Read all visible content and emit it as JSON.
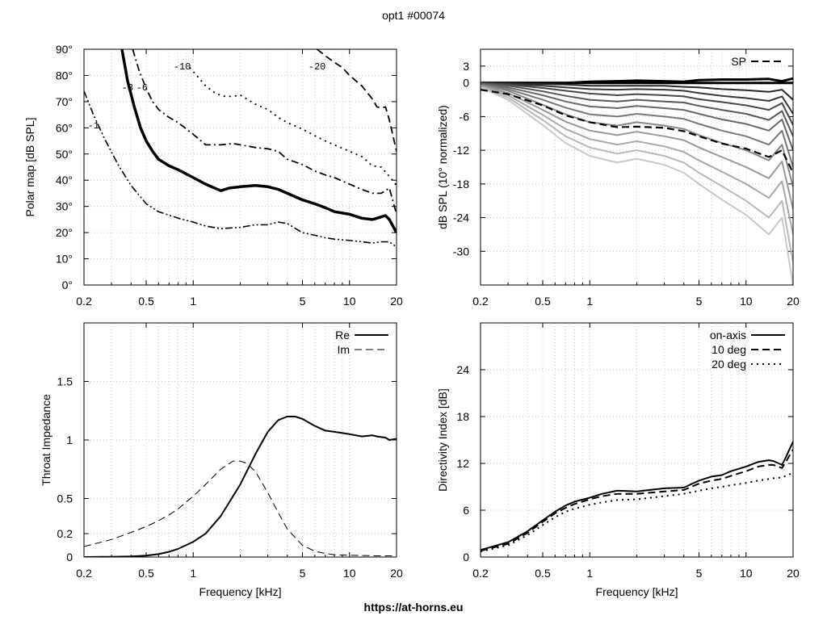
{
  "title": "opt1 #00074",
  "footer": "https://at-horns.eu",
  "chart_data": [
    {
      "id": "polar",
      "type": "line",
      "subtype": "contour",
      "ylabel": "Polar map [dB SPL]",
      "xlabel": "",
      "xscale": "log",
      "xlim": [
        0.2,
        20
      ],
      "ylim": [
        0,
        90
      ],
      "x_tick_values": [
        0.2,
        0.5,
        1,
        5,
        10,
        20
      ],
      "x_tick_labels": [
        "0.2",
        "0.5",
        "1",
        "5",
        "10",
        "20"
      ],
      "y_tick_values": [
        0,
        10,
        20,
        30,
        40,
        50,
        60,
        70,
        80,
        90
      ],
      "y_tick_labels": [
        "0°",
        "10°",
        "20°",
        "30°",
        "40°",
        "50°",
        "60°",
        "70°",
        "80°",
        "90°"
      ],
      "grid": true,
      "series": [
        {
          "label": "-1",
          "style": "dashdotdot",
          "width": 1.6,
          "x": [
            0.2,
            0.23,
            0.27,
            0.33,
            0.4,
            0.5,
            0.6,
            0.8,
            1.0,
            1.2,
            1.5,
            2.0,
            2.5,
            3.0,
            3.5,
            4.0,
            5.0,
            6.0,
            7.0,
            8.0,
            10,
            12,
            14,
            16,
            18,
            20
          ],
          "y": [
            74,
            65,
            56,
            46,
            38,
            31,
            28,
            25.5,
            24,
            22.5,
            21.5,
            22,
            23,
            23,
            24,
            23.5,
            20,
            19,
            18,
            17.5,
            17,
            16.5,
            16,
            16.5,
            16.5,
            14.5
          ]
        },
        {
          "label": "-3",
          "style": "solid",
          "width": 3.5,
          "x": [
            0.35,
            0.38,
            0.42,
            0.46,
            0.5,
            0.55,
            0.6,
            0.7,
            0.8,
            1.0,
            1.2,
            1.5,
            1.7,
            2.0,
            2.5,
            3.0,
            3.5,
            4.0,
            5.0,
            6.0,
            7.0,
            8.0,
            10,
            12,
            14,
            15,
            16,
            17,
            18,
            20
          ],
          "y": [
            90,
            78,
            68,
            60,
            55,
            51,
            48,
            45.5,
            44,
            41,
            38.5,
            36,
            37,
            37.5,
            38,
            37.5,
            36.5,
            35,
            32.5,
            31,
            29.5,
            28,
            27,
            25.5,
            25,
            25.5,
            26,
            26.5,
            25,
            20
          ]
        },
        {
          "label": "-6",
          "style": "dashdot",
          "width": 1.8,
          "x": [
            0.41,
            0.45,
            0.5,
            0.55,
            0.6,
            0.7,
            0.8,
            1.0,
            1.2,
            1.5,
            1.8,
            2.0,
            2.5,
            3.0,
            3.5,
            4.0,
            5.0,
            6.0,
            7.0,
            8.0,
            10,
            12,
            14,
            16,
            18,
            20
          ],
          "y": [
            90,
            82,
            75,
            70,
            67,
            64,
            62,
            57.5,
            53.5,
            53.5,
            54,
            53.5,
            52.5,
            52,
            51,
            48,
            46,
            43.5,
            42,
            41,
            38.5,
            36.5,
            35,
            35,
            37,
            27
          ]
        },
        {
          "label": "-10",
          "style": "dotted",
          "width": 1.8,
          "x": [
            0.95,
            1.05,
            1.2,
            1.4,
            1.6,
            1.8,
            2.0,
            2.2,
            2.5,
            3.0,
            3.5,
            4.0,
            5.0,
            6.0,
            7.0,
            8.0,
            10,
            12,
            14,
            16,
            18,
            20
          ],
          "y": [
            83,
            80,
            76,
            73,
            72,
            72,
            72.5,
            71,
            69,
            67,
            64,
            62,
            59.5,
            57,
            55,
            53.5,
            51,
            49,
            45.5,
            45,
            41.5,
            38
          ]
        },
        {
          "label": "-20",
          "style": "dashed",
          "width": 1.8,
          "x": [
            6.2,
            7.0,
            8.0,
            9.0,
            10,
            12,
            14,
            15,
            16,
            17,
            18,
            20
          ],
          "y": [
            90,
            87.5,
            85,
            83,
            80,
            76,
            71,
            68,
            67.5,
            68,
            63,
            51
          ]
        }
      ],
      "annotations": [
        {
          "text": "-1",
          "x": 0.23,
          "y": 61
        },
        {
          "text": "-3",
          "x": 0.38,
          "y": 75.5
        },
        {
          "text": "-6",
          "x": 0.47,
          "y": 75.5
        },
        {
          "text": "-10",
          "x": 0.85,
          "y": 83.5
        },
        {
          "text": "-20",
          "x": 6.2,
          "y": 83.5
        }
      ]
    },
    {
      "id": "norm",
      "type": "line",
      "ylabel": "dB SPL (10° normalized)",
      "xlabel": "",
      "xscale": "log",
      "xlim": [
        0.2,
        20
      ],
      "ylim": [
        -36,
        6
      ],
      "x_tick_values": [
        0.2,
        0.5,
        1,
        5,
        10,
        20
      ],
      "x_tick_labels": [
        "0.2",
        "0.5",
        "1",
        "5",
        "10",
        "20"
      ],
      "y_tick_values": [
        3,
        0,
        -6,
        -12,
        -18,
        -24,
        -30
      ],
      "y_tick_labels": [
        "3",
        "0",
        "-6",
        "-12",
        "-18",
        "-24",
        "-30"
      ],
      "grid": true,
      "legend": "top-right",
      "legend_entries": [
        "SP"
      ],
      "freq": [
        0.2,
        0.3,
        0.5,
        0.7,
        1.0,
        1.5,
        2.0,
        3.0,
        4.0,
        5.0,
        7.0,
        10,
        14,
        17,
        20
      ],
      "series": [
        {
          "angle": 0,
          "values": [
            0,
            0,
            0,
            0,
            0.2,
            0.3,
            0.4,
            0.3,
            0.2,
            0.5,
            0.6,
            0.6,
            0.7,
            0.3,
            0.8
          ]
        },
        {
          "angle": 10,
          "values": [
            0,
            0,
            0,
            0,
            0,
            0,
            0,
            0,
            0,
            0,
            0,
            0,
            0,
            0,
            0
          ]
        },
        {
          "angle": 20,
          "values": [
            0,
            -0.1,
            -0.2,
            -0.3,
            -0.5,
            -0.5,
            -0.5,
            -0.5,
            -0.7,
            -0.8,
            -1.1,
            -1.3,
            -1.6,
            -1.2,
            -3
          ]
        },
        {
          "angle": 30,
          "values": [
            0,
            -0.2,
            -0.5,
            -0.8,
            -1.1,
            -1.2,
            -1.1,
            -1.2,
            -1.4,
            -1.8,
            -2.3,
            -2.7,
            -3.2,
            -2.4,
            -5.5
          ]
        },
        {
          "angle": 40,
          "values": [
            -0.1,
            -0.3,
            -0.9,
            -1.4,
            -1.9,
            -2.2,
            -2.0,
            -2.2,
            -2.4,
            -2.9,
            -3.4,
            -4.0,
            -4.8,
            -3.6,
            -7.5
          ]
        },
        {
          "angle": 50,
          "values": [
            -0.1,
            -0.5,
            -1.5,
            -2.3,
            -3.0,
            -3.3,
            -3.0,
            -3.3,
            -3.5,
            -4.1,
            -4.8,
            -5.5,
            -6.6,
            -5.0,
            -9.5
          ]
        },
        {
          "angle": 60,
          "values": [
            -0.2,
            -0.8,
            -2.2,
            -3.3,
            -4.2,
            -4.5,
            -4.1,
            -4.5,
            -4.8,
            -5.5,
            -6.5,
            -7.3,
            -8.5,
            -6.5,
            -12
          ]
        },
        {
          "angle": 70,
          "values": [
            -0.3,
            -1.1,
            -3.0,
            -4.4,
            -5.6,
            -6.0,
            -5.5,
            -6.0,
            -6.4,
            -7.3,
            -8.5,
            -9.5,
            -11,
            -8.5,
            -15
          ]
        },
        {
          "angle": 80,
          "values": [
            -0.4,
            -1.4,
            -3.9,
            -5.6,
            -7.0,
            -7.6,
            -7.0,
            -7.6,
            -8.2,
            -9.3,
            -10.7,
            -12,
            -13.8,
            -11,
            -18.5
          ]
        },
        {
          "angle": 90,
          "values": [
            -0.5,
            -1.8,
            -4.8,
            -6.9,
            -8.5,
            -9.3,
            -8.7,
            -9.5,
            -10.2,
            -11.5,
            -13.2,
            -15,
            -17,
            -14,
            -22.5
          ]
        },
        {
          "angle": 100,
          "values": [
            -0.6,
            -2.2,
            -5.7,
            -8.2,
            -10,
            -11,
            -10.4,
            -11.3,
            -12.3,
            -13.8,
            -15.8,
            -18,
            -20.5,
            -17.5,
            -27
          ]
        },
        {
          "angle": 110,
          "values": [
            -0.7,
            -2.6,
            -6.6,
            -9.5,
            -11.5,
            -12.6,
            -12,
            -13,
            -14.2,
            -16,
            -18.4,
            -21,
            -24,
            -21,
            -32
          ]
        },
        {
          "angle": 120,
          "values": [
            -0.8,
            -3.0,
            -7.5,
            -10.7,
            -13,
            -14.2,
            -13.5,
            -14.6,
            -16,
            -18,
            -20.8,
            -23.5,
            -27,
            -24,
            -36
          ]
        },
        {
          "name": "SP",
          "style": "dashed",
          "values": [
            -1.2,
            -2.0,
            -4.0,
            -5.8,
            -7.0,
            -7.9,
            -7.8,
            -8.0,
            -8.6,
            -9.5,
            -10.8,
            -11.7,
            -13.2,
            -12,
            -16
          ]
        }
      ]
    },
    {
      "id": "impedance",
      "type": "line",
      "ylabel": "Throat Impedance",
      "xlabel": "Frequency [kHz]",
      "xscale": "log",
      "xlim": [
        0.2,
        20
      ],
      "ylim": [
        0,
        2
      ],
      "x_tick_values": [
        0.2,
        0.5,
        1,
        5,
        10,
        20
      ],
      "x_tick_labels": [
        "0.2",
        "0.5",
        "1",
        "5",
        "10",
        "20"
      ],
      "y_tick_values": [
        0,
        0.2,
        0.5,
        1,
        1.5
      ],
      "y_tick_labels": [
        "0",
        "0.2",
        "0.5",
        "1",
        "1.5"
      ],
      "grid": true,
      "legend": "top-right",
      "series": [
        {
          "name": "Re",
          "style": "solid",
          "x": [
            0.2,
            0.3,
            0.4,
            0.5,
            0.6,
            0.7,
            0.8,
            1.0,
            1.2,
            1.5,
            2.0,
            2.5,
            3.0,
            3.5,
            4.0,
            4.5,
            5.0,
            6.0,
            7.0,
            8.0,
            10,
            12,
            14,
            15,
            17,
            18,
            20
          ],
          "y": [
            0,
            0.002,
            0.005,
            0.012,
            0.025,
            0.045,
            0.07,
            0.13,
            0.2,
            0.35,
            0.62,
            0.88,
            1.07,
            1.17,
            1.2,
            1.2,
            1.18,
            1.12,
            1.08,
            1.07,
            1.05,
            1.03,
            1.04,
            1.03,
            1.02,
            1.0,
            1.01
          ]
        },
        {
          "name": "Im",
          "style": "dashed",
          "x": [
            0.2,
            0.3,
            0.4,
            0.5,
            0.6,
            0.7,
            0.8,
            1.0,
            1.2,
            1.5,
            1.8,
            2.0,
            2.2,
            2.5,
            3.0,
            3.5,
            4.0,
            5.0,
            6.0,
            7.0,
            8.0,
            10,
            15,
            20
          ],
          "y": [
            0.09,
            0.15,
            0.21,
            0.26,
            0.31,
            0.36,
            0.41,
            0.52,
            0.62,
            0.75,
            0.82,
            0.82,
            0.8,
            0.73,
            0.55,
            0.38,
            0.24,
            0.1,
            0.05,
            0.03,
            0.02,
            0.015,
            0.01,
            0.01
          ]
        }
      ]
    },
    {
      "id": "di",
      "type": "line",
      "ylabel": "Directivity Index [dB]",
      "xlabel": "Frequency [kHz]",
      "xscale": "log",
      "xlim": [
        0.2,
        20
      ],
      "ylim": [
        0,
        30
      ],
      "x_tick_values": [
        0.2,
        0.5,
        1,
        5,
        10,
        20
      ],
      "x_tick_labels": [
        "0.2",
        "0.5",
        "1",
        "5",
        "10",
        "20"
      ],
      "y_tick_values": [
        0,
        6,
        12,
        18,
        24
      ],
      "y_tick_labels": [
        "0",
        "6",
        "12",
        "18",
        "24"
      ],
      "grid": true,
      "legend": "top-right",
      "series": [
        {
          "name": "on-axis",
          "style": "solid",
          "x": [
            0.2,
            0.3,
            0.4,
            0.5,
            0.6,
            0.7,
            0.8,
            1.0,
            1.2,
            1.5,
            2.0,
            3.0,
            4.0,
            5.0,
            6.0,
            7.0,
            8.0,
            10,
            12,
            14,
            15,
            17,
            18,
            20
          ],
          "y": [
            0.9,
            1.9,
            3.3,
            4.7,
            5.8,
            6.6,
            7.1,
            7.6,
            8.1,
            8.5,
            8.4,
            8.8,
            8.9,
            9.8,
            10.3,
            10.5,
            11.0,
            11.6,
            12.2,
            12.4,
            12.3,
            11.8,
            12.8,
            14.8
          ]
        },
        {
          "name": "10 deg",
          "style": "dashed",
          "x": [
            0.2,
            0.3,
            0.4,
            0.5,
            0.6,
            0.7,
            0.8,
            1.0,
            1.2,
            1.5,
            2.0,
            3.0,
            4.0,
            5.0,
            6.0,
            7.0,
            8.0,
            10,
            12,
            14,
            15,
            17,
            18,
            20
          ],
          "y": [
            0.8,
            1.7,
            3.1,
            4.5,
            5.6,
            6.3,
            6.8,
            7.4,
            7.8,
            8.1,
            8.1,
            8.4,
            8.6,
            9.4,
            9.8,
            10.0,
            10.4,
            11.0,
            11.6,
            11.8,
            11.8,
            11.4,
            12.2,
            13.8
          ]
        },
        {
          "name": "20 deg",
          "style": "dotted",
          "x": [
            0.2,
            0.3,
            0.4,
            0.5,
            0.6,
            0.7,
            0.8,
            1.0,
            1.2,
            1.5,
            2.0,
            3.0,
            4.0,
            5.0,
            6.0,
            7.0,
            8.0,
            10,
            12,
            14,
            15,
            17,
            18,
            20
          ],
          "y": [
            0.7,
            1.5,
            2.8,
            4.1,
            5.1,
            5.8,
            6.2,
            6.7,
            7.0,
            7.3,
            7.4,
            7.8,
            8.1,
            8.5,
            8.8,
            9.0,
            9.2,
            9.5,
            9.8,
            10.0,
            10.1,
            10.2,
            10.4,
            10.8
          ]
        }
      ]
    }
  ]
}
